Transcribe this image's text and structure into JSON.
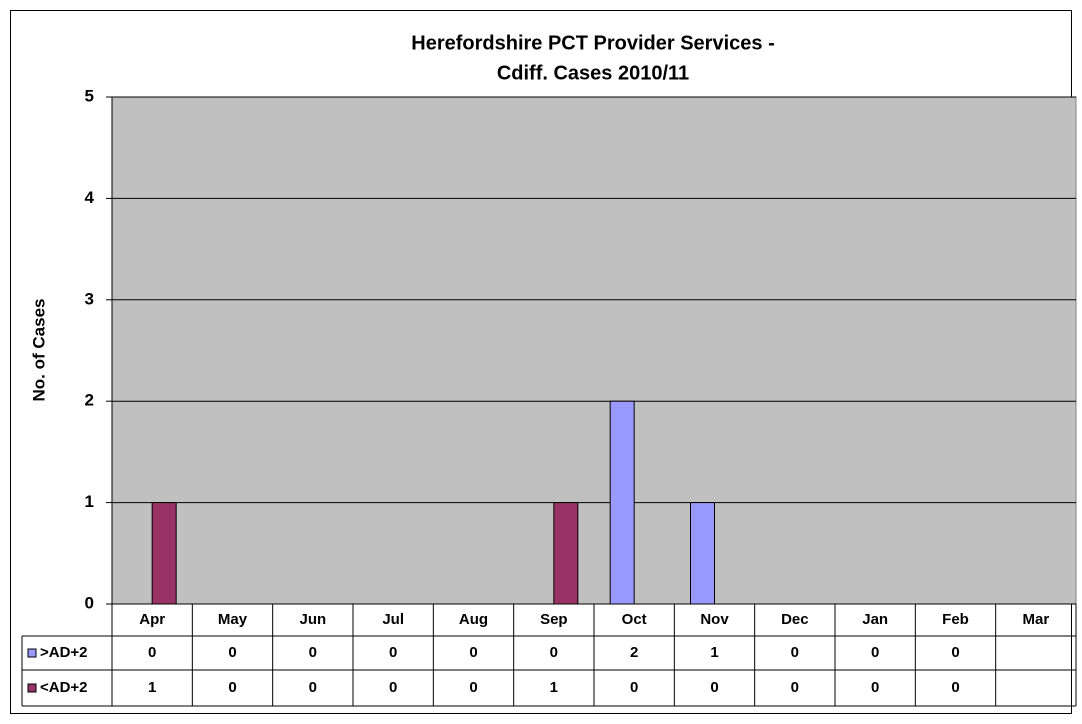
{
  "chart_data": {
    "type": "bar",
    "title": [
      "Herefordshire PCT Provider Services -",
      "Cdiff. Cases 2010/11"
    ],
    "y_label": "No. of Cases",
    "categories": [
      "Apr",
      "May",
      "Jun",
      "Jul",
      "Aug",
      "Sep",
      "Oct",
      "Nov",
      "Dec",
      "Jan",
      "Feb",
      "Mar"
    ],
    "series": [
      {
        "name": ">AD+2",
        "color": "#9999ff",
        "values": [
          0,
          0,
          0,
          0,
          0,
          0,
          2,
          1,
          0,
          0,
          0,
          null
        ]
      },
      {
        "name": "<AD+2",
        "color": "#993366",
        "values": [
          1,
          0,
          0,
          0,
          0,
          1,
          0,
          0,
          0,
          0,
          0,
          null
        ]
      }
    ],
    "ylim": [
      0,
      5
    ],
    "yticks": [
      0,
      1,
      2,
      3,
      4,
      5
    ],
    "grid": true,
    "plot_background": "#c0c0c0",
    "data_table": true
  }
}
